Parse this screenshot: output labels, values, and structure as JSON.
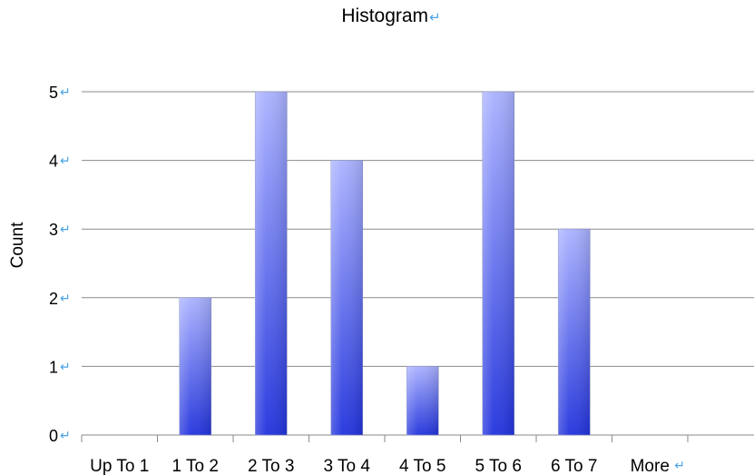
{
  "chart_data": {
    "type": "bar",
    "title": "Histogram",
    "xlabel": "",
    "ylabel": "Count",
    "categories": [
      "Up To 1",
      "1 To 2",
      "2 To 3",
      "3 To 4",
      "4 To 5",
      "5 To 6",
      "6 To 7",
      "More"
    ],
    "values": [
      0,
      2,
      5,
      4,
      1,
      5,
      3,
      0
    ],
    "y_ticks": [
      "0",
      "1",
      "2",
      "3",
      "4",
      "5"
    ],
    "ylim": [
      0,
      5
    ],
    "grid": true,
    "legend": "none",
    "colors": {
      "bar_top": "#aab2ff",
      "bar_bottom": "#2233dd",
      "grid": "#8a8a8a",
      "return_mark": "#4aa3e6"
    }
  }
}
